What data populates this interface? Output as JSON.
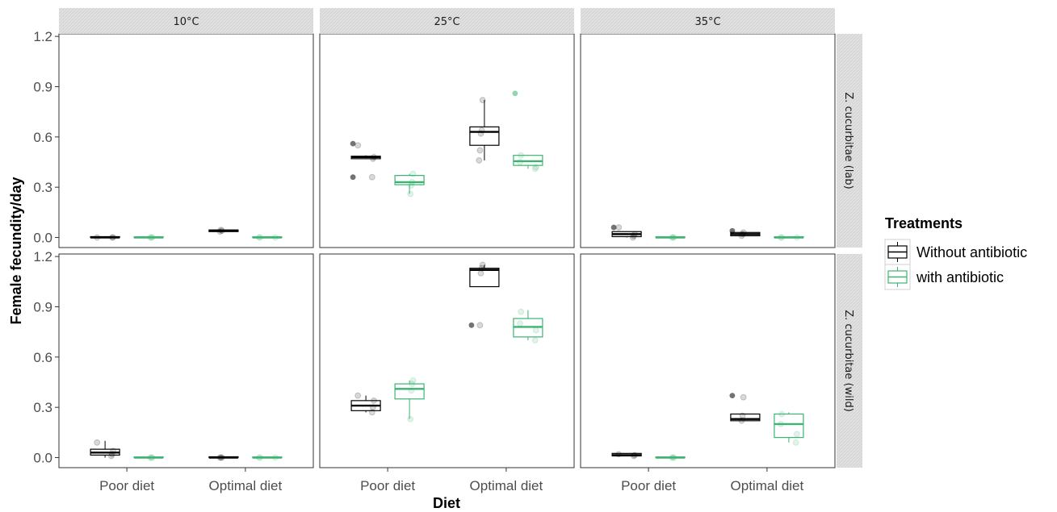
{
  "chart_data": {
    "type": "boxplot",
    "xlabel": "Diet",
    "ylabel": "Female fecundity/day",
    "ylim": [
      0,
      1.2
    ],
    "yticks": [
      0.0,
      0.3,
      0.6,
      0.9,
      1.2
    ],
    "ytick_labels": [
      "0.0",
      "0.3",
      "0.6",
      "0.9",
      "1.2"
    ],
    "categories": [
      "Poor diet",
      "Optimal diet"
    ],
    "col_facets": [
      "10°C",
      "25°C",
      "35°C"
    ],
    "row_facets": [
      "Z. cucurbitae (lab)",
      "Z. cucurbitae (wild)"
    ],
    "legend": {
      "title": "Treatments",
      "placement": "right",
      "items": [
        {
          "name": "Without antibiotic",
          "color": "#000000"
        },
        {
          "name": "with antibiotic",
          "color": "#3cb371"
        }
      ]
    },
    "panels": [
      {
        "row": 0,
        "col": 0,
        "boxes": [
          {
            "cat": 0,
            "series": 0,
            "q1": 0.0,
            "med": 0.0,
            "q3": 0.005,
            "lo": 0.0,
            "hi": 0.005,
            "pts": [
              0.0,
              0.0,
              0.0
            ],
            "out": []
          },
          {
            "cat": 0,
            "series": 1,
            "q1": 0.0,
            "med": 0.0,
            "q3": 0.004,
            "lo": 0.0,
            "hi": 0.004,
            "pts": [
              0.0,
              0.0,
              0.0
            ],
            "out": []
          },
          {
            "cat": 1,
            "series": 0,
            "q1": 0.035,
            "med": 0.04,
            "q3": 0.045,
            "lo": 0.035,
            "hi": 0.045,
            "pts": [
              0.04,
              0.045,
              0.035
            ],
            "out": []
          },
          {
            "cat": 1,
            "series": 1,
            "q1": 0.0,
            "med": 0.0,
            "q3": 0.004,
            "lo": 0.0,
            "hi": 0.004,
            "pts": [
              0.0,
              0.0,
              0.0
            ],
            "out": []
          }
        ]
      },
      {
        "row": 0,
        "col": 1,
        "boxes": [
          {
            "cat": 0,
            "series": 0,
            "q1": 0.47,
            "med": 0.48,
            "q3": 0.485,
            "lo": 0.47,
            "hi": 0.49,
            "pts": [
              0.55,
              0.48,
              0.47,
              0.36
            ],
            "out": [
              0.56,
              0.36
            ]
          },
          {
            "cat": 0,
            "series": 1,
            "q1": 0.315,
            "med": 0.33,
            "q3": 0.37,
            "lo": 0.26,
            "hi": 0.38,
            "pts": [
              0.38,
              0.33,
              0.31,
              0.26
            ],
            "out": []
          },
          {
            "cat": 1,
            "series": 0,
            "q1": 0.55,
            "med": 0.63,
            "q3": 0.66,
            "lo": 0.46,
            "hi": 0.82,
            "pts": [
              0.82,
              0.64,
              0.62,
              0.52,
              0.46
            ],
            "out": []
          },
          {
            "cat": 1,
            "series": 1,
            "q1": 0.43,
            "med": 0.455,
            "q3": 0.49,
            "lo": 0.41,
            "hi": 0.49,
            "pts": [
              0.49,
              0.45,
              0.42,
              0.41
            ],
            "out": [
              0.86
            ]
          }
        ]
      },
      {
        "row": 0,
        "col": 2,
        "boxes": [
          {
            "cat": 0,
            "series": 0,
            "q1": 0.005,
            "med": 0.02,
            "q3": 0.035,
            "lo": 0.0,
            "hi": 0.035,
            "pts": [
              0.06,
              0.02,
              0.01,
              0.0
            ],
            "out": [
              0.06
            ]
          },
          {
            "cat": 0,
            "series": 1,
            "q1": 0.0,
            "med": 0.0,
            "q3": 0.004,
            "lo": 0.0,
            "hi": 0.004,
            "pts": [
              0.0,
              0.0,
              0.0
            ],
            "out": []
          },
          {
            "cat": 1,
            "series": 0,
            "q1": 0.01,
            "med": 0.02,
            "q3": 0.03,
            "lo": 0.01,
            "hi": 0.03,
            "pts": [
              0.03,
              0.02,
              0.01
            ],
            "out": [
              0.04
            ]
          },
          {
            "cat": 1,
            "series": 1,
            "q1": 0.0,
            "med": 0.0,
            "q3": 0.004,
            "lo": 0.0,
            "hi": 0.004,
            "pts": [
              0.0,
              0.0,
              0.0
            ],
            "out": []
          }
        ]
      },
      {
        "row": 1,
        "col": 0,
        "boxes": [
          {
            "cat": 0,
            "series": 0,
            "q1": 0.015,
            "med": 0.03,
            "q3": 0.05,
            "lo": 0.0,
            "hi": 0.1,
            "pts": [
              0.09,
              0.04,
              0.02,
              0.01
            ],
            "out": []
          },
          {
            "cat": 0,
            "series": 1,
            "q1": 0.0,
            "med": 0.0,
            "q3": 0.004,
            "lo": 0.0,
            "hi": 0.004,
            "pts": [
              0.0,
              0.0,
              0.0
            ],
            "out": []
          },
          {
            "cat": 1,
            "series": 0,
            "q1": 0.0,
            "med": 0.0,
            "q3": 0.005,
            "lo": 0.0,
            "hi": 0.005,
            "pts": [
              0.0,
              0.0,
              0.0
            ],
            "out": []
          },
          {
            "cat": 1,
            "series": 1,
            "q1": 0.0,
            "med": 0.0,
            "q3": 0.004,
            "lo": 0.0,
            "hi": 0.004,
            "pts": [
              0.0,
              0.0,
              0.0
            ],
            "out": []
          }
        ]
      },
      {
        "row": 1,
        "col": 1,
        "boxes": [
          {
            "cat": 0,
            "series": 0,
            "q1": 0.28,
            "med": 0.31,
            "q3": 0.34,
            "lo": 0.27,
            "hi": 0.37,
            "pts": [
              0.37,
              0.34,
              0.3,
              0.27
            ],
            "out": []
          },
          {
            "cat": 0,
            "series": 1,
            "q1": 0.35,
            "med": 0.41,
            "q3": 0.44,
            "lo": 0.23,
            "hi": 0.46,
            "pts": [
              0.46,
              0.44,
              0.4,
              0.23
            ],
            "out": []
          },
          {
            "cat": 1,
            "series": 0,
            "q1": 1.02,
            "med": 1.12,
            "q3": 1.13,
            "lo": 1.02,
            "hi": 1.15,
            "pts": [
              1.15,
              1.13,
              1.1,
              0.79
            ],
            "out": [
              0.79
            ]
          },
          {
            "cat": 1,
            "series": 1,
            "q1": 0.72,
            "med": 0.78,
            "q3": 0.83,
            "lo": 0.7,
            "hi": 0.88,
            "pts": [
              0.87,
              0.8,
              0.76,
              0.7
            ],
            "out": []
          }
        ]
      },
      {
        "row": 1,
        "col": 2,
        "boxes": [
          {
            "cat": 0,
            "series": 0,
            "q1": 0.01,
            "med": 0.015,
            "q3": 0.025,
            "lo": 0.01,
            "hi": 0.025,
            "pts": [
              0.02,
              0.015,
              0.01
            ],
            "out": []
          },
          {
            "cat": 0,
            "series": 1,
            "q1": 0.0,
            "med": 0.0,
            "q3": 0.004,
            "lo": 0.0,
            "hi": 0.004,
            "pts": [
              0.0,
              0.0,
              0.0
            ],
            "out": []
          },
          {
            "cat": 1,
            "series": 0,
            "q1": 0.22,
            "med": 0.23,
            "q3": 0.26,
            "lo": 0.22,
            "hi": 0.26,
            "pts": [
              0.36,
              0.25,
              0.22
            ],
            "out": [
              0.37
            ]
          },
          {
            "cat": 1,
            "series": 1,
            "q1": 0.12,
            "med": 0.2,
            "q3": 0.26,
            "lo": 0.09,
            "hi": 0.27,
            "pts": [
              0.26,
              0.2,
              0.14,
              0.09
            ],
            "out": []
          }
        ]
      }
    ]
  }
}
